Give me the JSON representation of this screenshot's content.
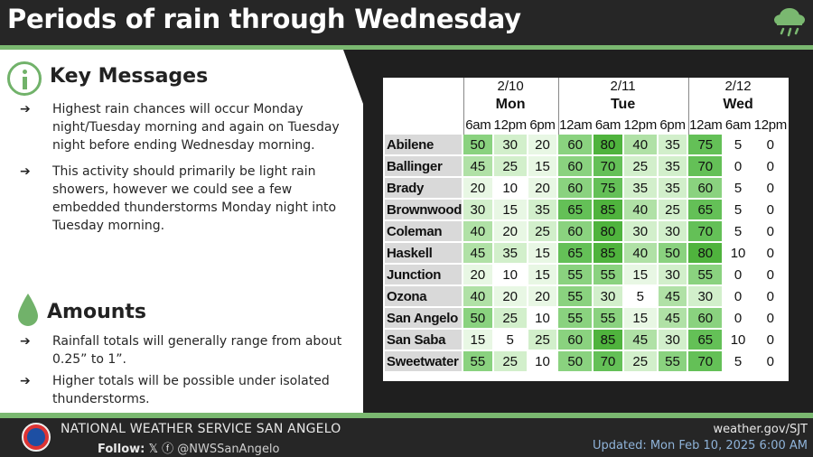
{
  "header": {
    "title": "Periods of rain through Wednesday"
  },
  "key_messages": {
    "title": "Key Messages",
    "bullets": [
      "Highest rain chances will occur Monday night/Tuesday morning and again on Tuesday night before ending Wednesday morning.",
      "This activity should primarily be light rain showers, however we could see a few embedded thunderstorms Monday night into Tuesday morning."
    ]
  },
  "amounts": {
    "title": "Amounts",
    "bullets": [
      "Rainfall totals will generally range from about 0.25” to 1”.",
      "Higher totals will be possible under isolated thunderstorms."
    ]
  },
  "table": {
    "days": [
      {
        "date": "2/10",
        "dow": "Mon",
        "span": 3
      },
      {
        "date": "2/11",
        "dow": "Tue",
        "span": 4
      },
      {
        "date": "2/12",
        "dow": "Wed",
        "span": 3
      }
    ],
    "times": [
      "6am",
      "12pm",
      "6pm",
      "12am",
      "6am",
      "12pm",
      "6pm",
      "12am",
      "6am",
      "12pm"
    ],
    "rows": [
      {
        "city": "Abilene",
        "values": [
          50,
          30,
          20,
          60,
          80,
          40,
          35,
          75,
          5,
          0
        ]
      },
      {
        "city": "Ballinger",
        "values": [
          45,
          25,
          15,
          60,
          70,
          25,
          35,
          70,
          0,
          0
        ]
      },
      {
        "city": "Brady",
        "values": [
          20,
          10,
          20,
          60,
          75,
          35,
          35,
          60,
          5,
          0
        ]
      },
      {
        "city": "Brownwood",
        "values": [
          30,
          15,
          35,
          65,
          85,
          40,
          25,
          65,
          5,
          0
        ]
      },
      {
        "city": "Coleman",
        "values": [
          40,
          20,
          25,
          60,
          80,
          30,
          30,
          70,
          5,
          0
        ]
      },
      {
        "city": "Haskell",
        "values": [
          45,
          35,
          15,
          65,
          85,
          40,
          50,
          80,
          10,
          0
        ]
      },
      {
        "city": "Junction",
        "values": [
          20,
          10,
          15,
          55,
          55,
          15,
          30,
          55,
          0,
          0
        ]
      },
      {
        "city": "Ozona",
        "values": [
          40,
          20,
          20,
          55,
          30,
          5,
          45,
          30,
          0,
          0
        ]
      },
      {
        "city": "San Angelo",
        "values": [
          50,
          25,
          10,
          55,
          55,
          15,
          45,
          60,
          0,
          0
        ]
      },
      {
        "city": "San Saba",
        "values": [
          15,
          5,
          25,
          60,
          85,
          45,
          30,
          65,
          10,
          0
        ]
      },
      {
        "city": "Sweetwater",
        "values": [
          55,
          25,
          10,
          50,
          70,
          25,
          55,
          70,
          5,
          0
        ]
      }
    ]
  },
  "footer": {
    "office": "NATIONAL WEATHER SERVICE SAN ANGELO",
    "follow_label": "Follow:",
    "handle": "@NWSSanAngelo",
    "website": "weather.gov/SJT",
    "updated": "Updated: Mon Feb 10, 2025 6:00 AM"
  },
  "colors": {
    "accent_green": "#7ab870",
    "header_bg": "#262626",
    "update_blue": "#8fb3d9"
  }
}
